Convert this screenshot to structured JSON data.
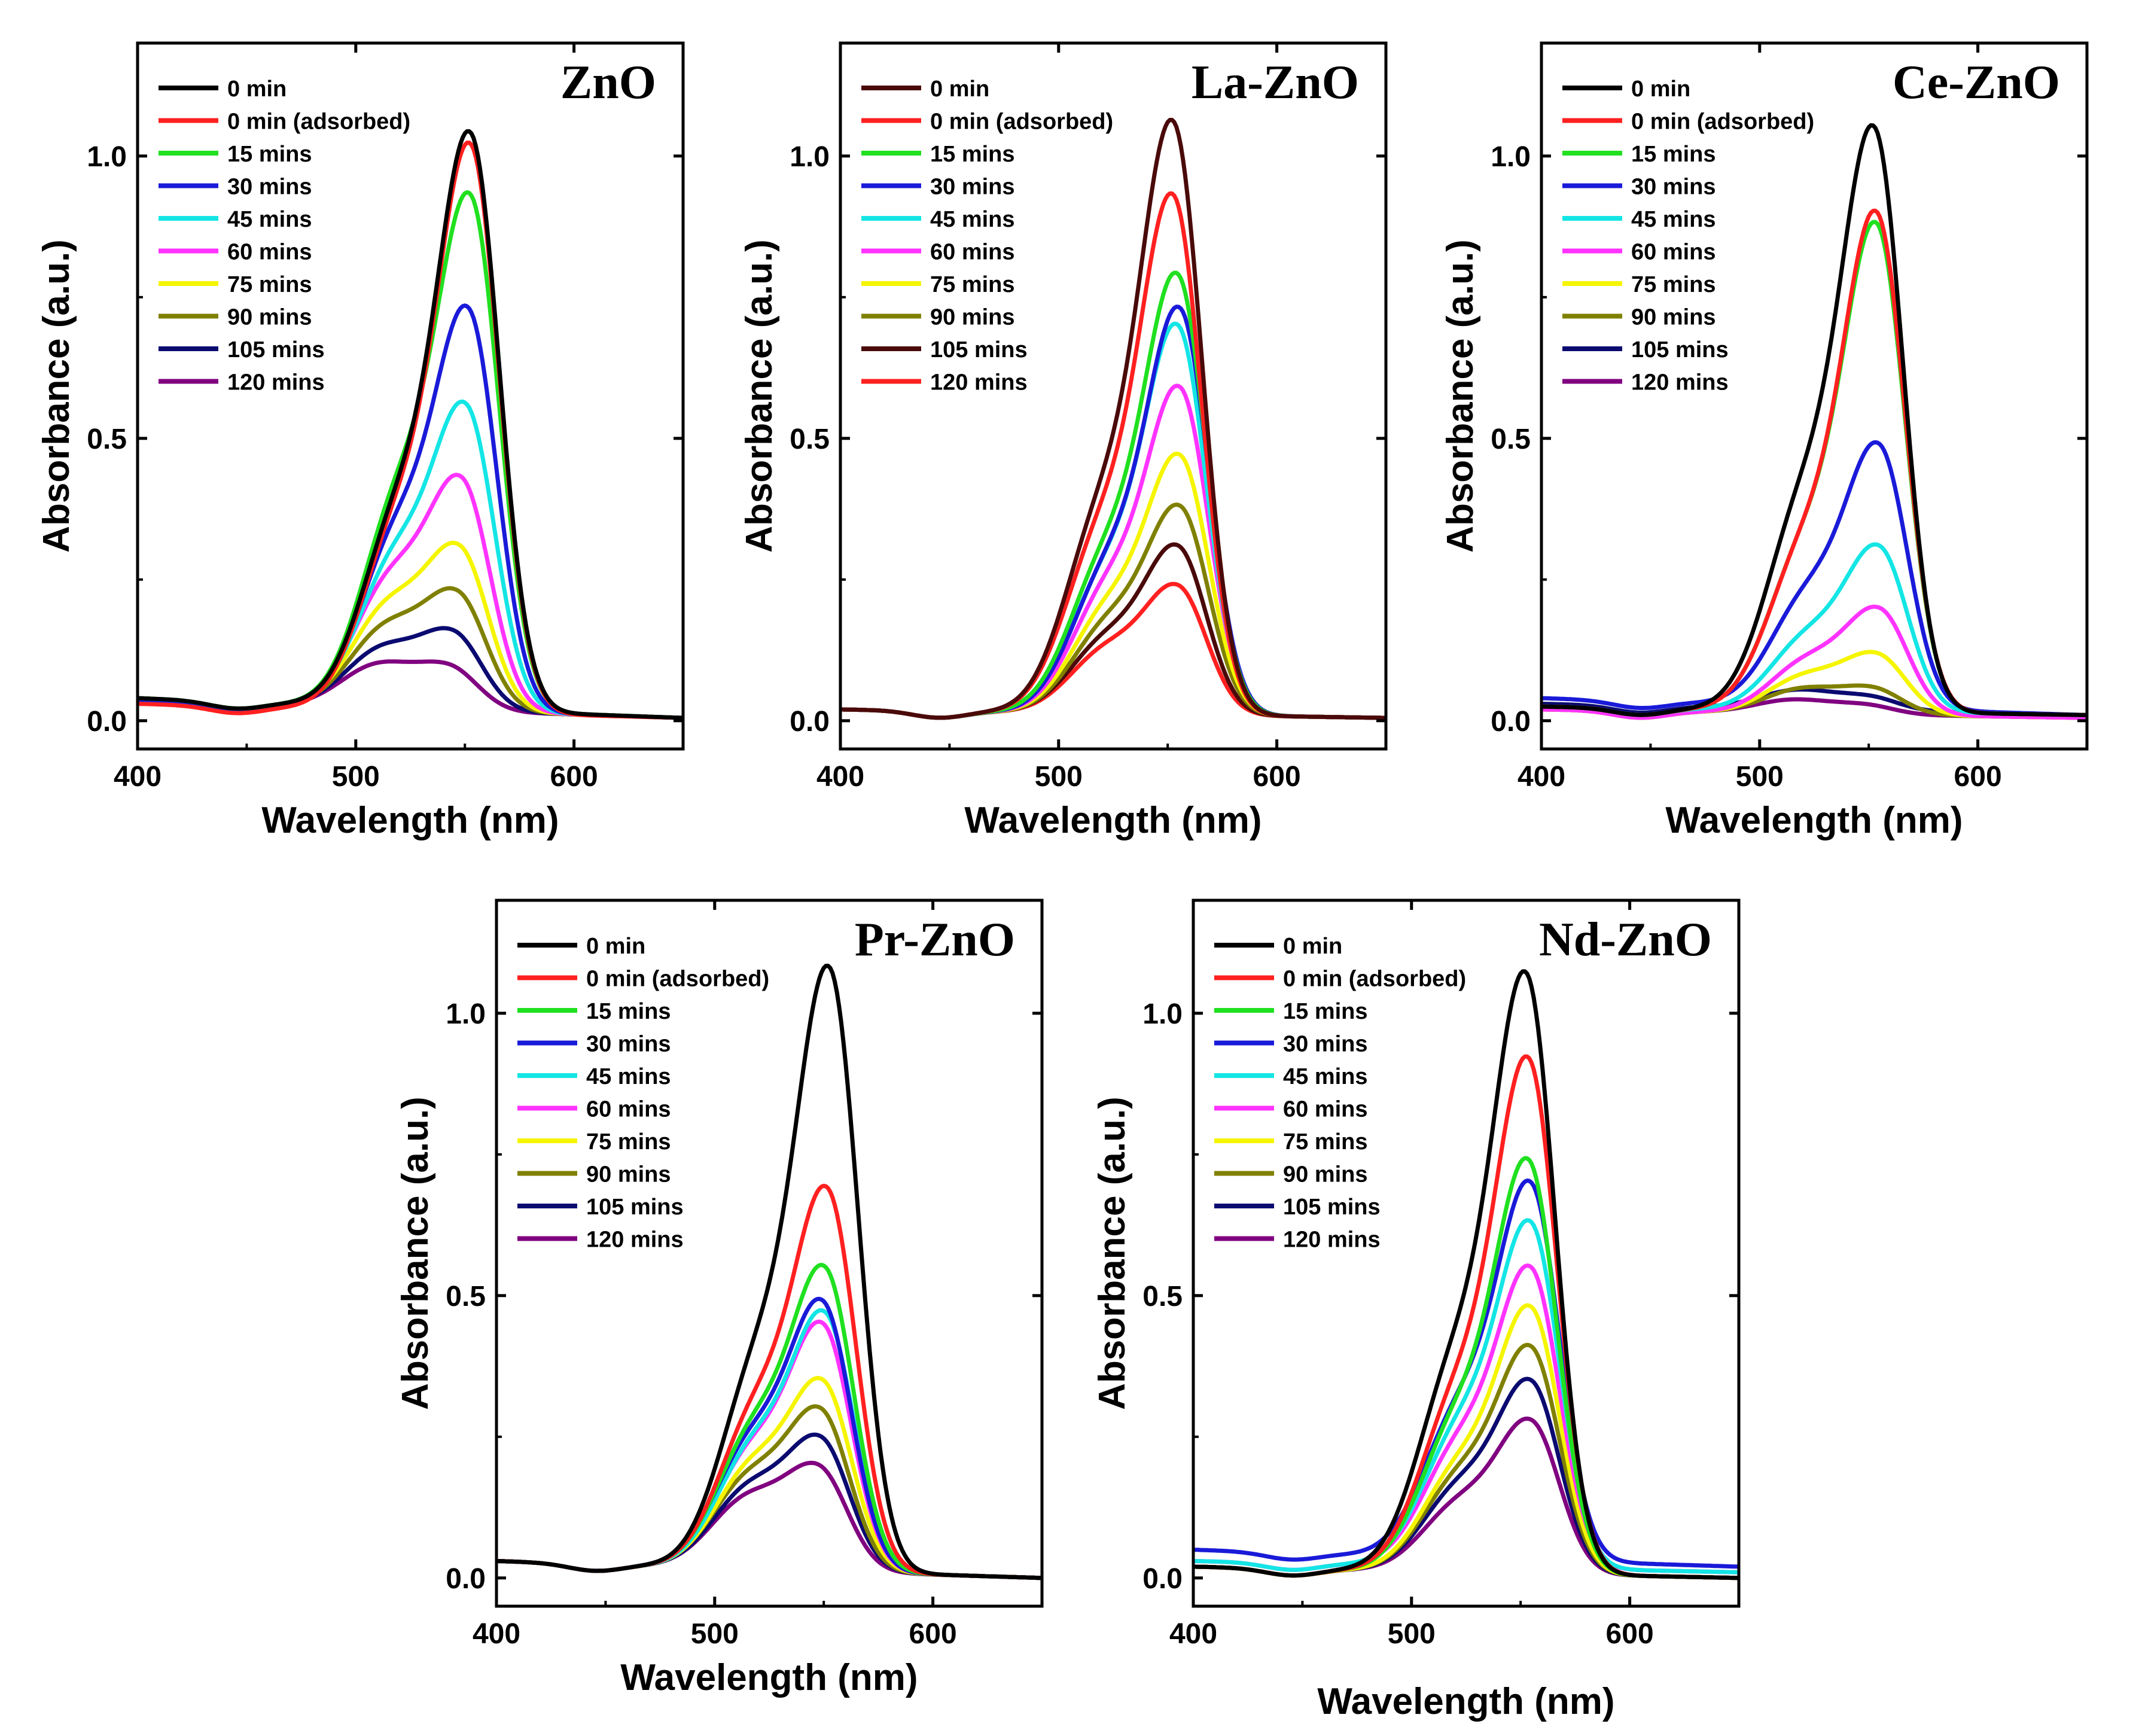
{
  "figure": {
    "ylabel": "Absorbance (a.u.)",
    "xlabel": "Wavelength (nm)"
  },
  "chart_data": [
    {
      "type": "line",
      "title": "ZnO",
      "xlabel": "Wavelength (nm)",
      "ylabel": "Absorbance (a.u.)",
      "xlim": [
        400,
        650
      ],
      "ylim": [
        -0.05,
        1.2
      ],
      "xticks": [
        400,
        500,
        600
      ],
      "yticks": [
        0.0,
        0.5,
        1.0
      ],
      "xtick_labels": [
        "400",
        "500",
        "600"
      ],
      "ytick_labels": [
        "0.0",
        "0.5",
        "1.0"
      ],
      "legend_position": "top-left",
      "series": [
        {
          "name": "0 min",
          "color": "#000000",
          "peak_x": 553,
          "peak_y": 1.04,
          "shoulder_y": 0.38,
          "base_left": 0.04,
          "base_right": 0.005
        },
        {
          "name": "0 min (adsorbed)",
          "color": "#ff2020",
          "peak_x": 553,
          "peak_y": 1.02,
          "shoulder_y": 0.37,
          "base_left": 0.03,
          "base_right": 0.005
        },
        {
          "name": "15 mins",
          "color": "#20e020",
          "peak_x": 553,
          "peak_y": 0.93,
          "shoulder_y": 0.4,
          "base_left": 0.04,
          "base_right": 0.005
        },
        {
          "name": "30 mins",
          "color": "#1a1ad9",
          "peak_x": 552,
          "peak_y": 0.73,
          "shoulder_y": 0.33,
          "base_left": 0.035,
          "base_right": 0.005
        },
        {
          "name": "45 mins",
          "color": "#14e5e5",
          "peak_x": 551,
          "peak_y": 0.56,
          "shoulder_y": 0.28,
          "base_left": 0.035,
          "base_right": 0.005
        },
        {
          "name": "60 mins",
          "color": "#ff33ff",
          "peak_x": 549,
          "peak_y": 0.43,
          "shoulder_y": 0.24,
          "base_left": 0.035,
          "base_right": 0.005
        },
        {
          "name": "75 mins",
          "color": "#f5f500",
          "peak_x": 548,
          "peak_y": 0.31,
          "shoulder_y": 0.19,
          "base_left": 0.035,
          "base_right": 0.005
        },
        {
          "name": "90 mins",
          "color": "#808000",
          "peak_x": 547,
          "peak_y": 0.23,
          "shoulder_y": 0.15,
          "base_left": 0.035,
          "base_right": 0.005
        },
        {
          "name": "105 mins",
          "color": "#0a0a70",
          "peak_x": 545,
          "peak_y": 0.16,
          "shoulder_y": 0.11,
          "base_left": 0.035,
          "base_right": 0.005
        },
        {
          "name": "120 mins",
          "color": "#800080",
          "peak_x": 543,
          "peak_y": 0.1,
          "shoulder_y": 0.08,
          "base_left": 0.035,
          "base_right": 0.005
        }
      ]
    },
    {
      "type": "line",
      "title": "La-ZnO",
      "xlabel": "Wavelength (nm)",
      "ylabel": "Absorbance (a.u.)",
      "xlim": [
        400,
        650
      ],
      "ylim": [
        -0.05,
        1.2
      ],
      "xticks": [
        400,
        500,
        600
      ],
      "yticks": [
        0.0,
        0.5,
        1.0
      ],
      "xtick_labels": [
        "400",
        "500",
        "600"
      ],
      "ytick_labels": [
        "0.0",
        "0.5",
        "1.0"
      ],
      "legend_position": "top-left",
      "series": [
        {
          "name": "0 min",
          "color": "#4a0a0a",
          "peak_x": 553,
          "peak_y": 1.06,
          "shoulder_y": 0.39,
          "base_left": 0.02,
          "base_right": 0.005
        },
        {
          "name": "0 min (adsorbed)",
          "color": "#ff2020",
          "peak_x": 553,
          "peak_y": 0.93,
          "shoulder_y": 0.35,
          "base_left": 0.02,
          "base_right": 0.005
        },
        {
          "name": "15 mins",
          "color": "#20e020",
          "peak_x": 555,
          "peak_y": 0.79,
          "shoulder_y": 0.3,
          "base_left": 0.02,
          "base_right": 0.005
        },
        {
          "name": "30 mins",
          "color": "#1a1ad9",
          "peak_x": 556,
          "peak_y": 0.73,
          "shoulder_y": 0.28,
          "base_left": 0.02,
          "base_right": 0.005
        },
        {
          "name": "45 mins",
          "color": "#14e5e5",
          "peak_x": 555,
          "peak_y": 0.7,
          "shoulder_y": 0.27,
          "base_left": 0.02,
          "base_right": 0.005
        },
        {
          "name": "60 mins",
          "color": "#ff33ff",
          "peak_x": 556,
          "peak_y": 0.59,
          "shoulder_y": 0.24,
          "base_left": 0.02,
          "base_right": 0.005
        },
        {
          "name": "75 mins",
          "color": "#f5f500",
          "peak_x": 556,
          "peak_y": 0.47,
          "shoulder_y": 0.2,
          "base_left": 0.02,
          "base_right": 0.005
        },
        {
          "name": "90 mins",
          "color": "#808000",
          "peak_x": 556,
          "peak_y": 0.38,
          "shoulder_y": 0.17,
          "base_left": 0.02,
          "base_right": 0.005
        },
        {
          "name": "105 mins",
          "color": "#4a0a0a",
          "peak_x": 555,
          "peak_y": 0.31,
          "shoulder_y": 0.14,
          "base_left": 0.02,
          "base_right": 0.005
        },
        {
          "name": "120 mins",
          "color": "#ff2020",
          "peak_x": 555,
          "peak_y": 0.24,
          "shoulder_y": 0.12,
          "base_left": 0.02,
          "base_right": 0.005
        }
      ]
    },
    {
      "type": "line",
      "title": "Ce-ZnO",
      "xlabel": "Wavelength (nm)",
      "ylabel": "Absorbance (a.u.)",
      "xlim": [
        400,
        650
      ],
      "ylim": [
        -0.05,
        1.2
      ],
      "xticks": [
        400,
        500,
        600
      ],
      "yticks": [
        0.0,
        0.5,
        1.0
      ],
      "xtick_labels": [
        "400",
        "500",
        "600"
      ],
      "ytick_labels": [
        "0.0",
        "0.5",
        "1.0"
      ],
      "legend_position": "top-left",
      "series": [
        {
          "name": "0 min",
          "color": "#000000",
          "peak_x": 553,
          "peak_y": 1.05,
          "shoulder_y": 0.4,
          "base_left": 0.025,
          "base_right": 0.01
        },
        {
          "name": "0 min (adsorbed)",
          "color": "#ff2020",
          "peak_x": 554,
          "peak_y": 0.9,
          "shoulder_y": 0.32,
          "base_left": 0.025,
          "base_right": 0.01
        },
        {
          "name": "15 mins",
          "color": "#20e020",
          "peak_x": 554,
          "peak_y": 0.88,
          "shoulder_y": 0.32,
          "base_left": 0.025,
          "base_right": 0.01
        },
        {
          "name": "30 mins",
          "color": "#1a1ad9",
          "peak_x": 555,
          "peak_y": 0.49,
          "shoulder_y": 0.21,
          "base_left": 0.04,
          "base_right": 0.01
        },
        {
          "name": "45 mins",
          "color": "#14e5e5",
          "peak_x": 555,
          "peak_y": 0.31,
          "shoulder_y": 0.14,
          "base_left": 0.025,
          "base_right": 0.01
        },
        {
          "name": "60 mins",
          "color": "#ff33ff",
          "peak_x": 555,
          "peak_y": 0.2,
          "shoulder_y": 0.1,
          "base_left": 0.02,
          "base_right": 0.005
        },
        {
          "name": "75 mins",
          "color": "#f5f500",
          "peak_x": 554,
          "peak_y": 0.12,
          "shoulder_y": 0.07,
          "base_left": 0.02,
          "base_right": 0.005
        },
        {
          "name": "90 mins",
          "color": "#808000",
          "peak_x": 552,
          "peak_y": 0.06,
          "shoulder_y": 0.045,
          "base_left": 0.02,
          "base_right": 0.005
        },
        {
          "name": "105 mins",
          "color": "#0a0a70",
          "peak_x": 550,
          "peak_y": 0.045,
          "shoulder_y": 0.035,
          "base_left": 0.03,
          "base_right": 0.01
        },
        {
          "name": "120 mins",
          "color": "#800080",
          "peak_x": 548,
          "peak_y": 0.03,
          "shoulder_y": 0.025,
          "base_left": 0.02,
          "base_right": 0.005
        }
      ]
    },
    {
      "type": "line",
      "title": "Pr-ZnO",
      "xlabel": "Wavelength (nm)",
      "ylabel": "Absorbance (a.u.)",
      "xlim": [
        400,
        650
      ],
      "ylim": [
        -0.05,
        1.2
      ],
      "xticks": [
        400,
        500,
        600
      ],
      "yticks": [
        0.0,
        0.5,
        1.0
      ],
      "xtick_labels": [
        "400",
        "500",
        "600"
      ],
      "ytick_labels": [
        "0.0",
        "0.5",
        "1.0"
      ],
      "legend_position": "top-left",
      "series": [
        {
          "name": "0 min",
          "color": "#000000",
          "peak_x": 553,
          "peak_y": 1.08,
          "shoulder_y": 0.4,
          "base_left": 0.03,
          "base_right": 0.0
        },
        {
          "name": "0 min (adsorbed)",
          "color": "#ff2020",
          "peak_x": 552,
          "peak_y": 0.69,
          "shoulder_y": 0.3,
          "base_left": 0.03,
          "base_right": 0.0
        },
        {
          "name": "15 mins",
          "color": "#20e020",
          "peak_x": 551,
          "peak_y": 0.55,
          "shoulder_y": 0.26,
          "base_left": 0.03,
          "base_right": 0.0
        },
        {
          "name": "30 mins",
          "color": "#1a1ad9",
          "peak_x": 550,
          "peak_y": 0.49,
          "shoulder_y": 0.24,
          "base_left": 0.03,
          "base_right": 0.0
        },
        {
          "name": "45 mins",
          "color": "#14e5e5",
          "peak_x": 551,
          "peak_y": 0.47,
          "shoulder_y": 0.23,
          "base_left": 0.03,
          "base_right": 0.0
        },
        {
          "name": "60 mins",
          "color": "#ff33ff",
          "peak_x": 550,
          "peak_y": 0.45,
          "shoulder_y": 0.22,
          "base_left": 0.03,
          "base_right": 0.0
        },
        {
          "name": "75 mins",
          "color": "#f5f500",
          "peak_x": 550,
          "peak_y": 0.35,
          "shoulder_y": 0.19,
          "base_left": 0.03,
          "base_right": 0.0
        },
        {
          "name": "90 mins",
          "color": "#808000",
          "peak_x": 549,
          "peak_y": 0.3,
          "shoulder_y": 0.17,
          "base_left": 0.03,
          "base_right": 0.0
        },
        {
          "name": "105 mins",
          "color": "#0a0a70",
          "peak_x": 549,
          "peak_y": 0.25,
          "shoulder_y": 0.15,
          "base_left": 0.03,
          "base_right": 0.0
        },
        {
          "name": "120 mins",
          "color": "#800080",
          "peak_x": 548,
          "peak_y": 0.2,
          "shoulder_y": 0.13,
          "base_left": 0.03,
          "base_right": 0.0
        }
      ]
    },
    {
      "type": "line",
      "title": "Nd-ZnO",
      "xlabel": "Wavelength (nm)",
      "ylabel": "Absorbance (a.u.)",
      "xlim": [
        400,
        650
      ],
      "ylim": [
        -0.05,
        1.2
      ],
      "xticks": [
        400,
        500,
        600
      ],
      "yticks": [
        0.0,
        0.5,
        1.0
      ],
      "xtick_labels": [
        "400",
        "500",
        "600"
      ],
      "ytick_labels": [
        "0.0",
        "0.5",
        "1.0"
      ],
      "legend_position": "top-left",
      "series": [
        {
          "name": "0 min",
          "color": "#000000",
          "peak_x": 553,
          "peak_y": 1.07,
          "shoulder_y": 0.4,
          "base_left": 0.02,
          "base_right": 0.0
        },
        {
          "name": "0 min (adsorbed)",
          "color": "#ff2020",
          "peak_x": 554,
          "peak_y": 0.92,
          "shoulder_y": 0.34,
          "base_left": 0.02,
          "base_right": 0.0
        },
        {
          "name": "15 mins",
          "color": "#20e020",
          "peak_x": 554,
          "peak_y": 0.74,
          "shoulder_y": 0.29,
          "base_left": 0.02,
          "base_right": 0.0
        },
        {
          "name": "30 mins",
          "color": "#1a1ad9",
          "peak_x": 555,
          "peak_y": 0.7,
          "shoulder_y": 0.28,
          "base_left": 0.05,
          "base_right": 0.02
        },
        {
          "name": "45 mins",
          "color": "#14e5e5",
          "peak_x": 555,
          "peak_y": 0.63,
          "shoulder_y": 0.26,
          "base_left": 0.03,
          "base_right": 0.01
        },
        {
          "name": "60 mins",
          "color": "#ff33ff",
          "peak_x": 555,
          "peak_y": 0.55,
          "shoulder_y": 0.23,
          "base_left": 0.03,
          "base_right": 0.01
        },
        {
          "name": "75 mins",
          "color": "#f5f500",
          "peak_x": 555,
          "peak_y": 0.48,
          "shoulder_y": 0.2,
          "base_left": 0.02,
          "base_right": 0.0
        },
        {
          "name": "90 mins",
          "color": "#808000",
          "peak_x": 555,
          "peak_y": 0.41,
          "shoulder_y": 0.18,
          "base_left": 0.02,
          "base_right": 0.0
        },
        {
          "name": "105 mins",
          "color": "#0a0a70",
          "peak_x": 555,
          "peak_y": 0.35,
          "shoulder_y": 0.16,
          "base_left": 0.02,
          "base_right": 0.0
        },
        {
          "name": "120 mins",
          "color": "#800080",
          "peak_x": 555,
          "peak_y": 0.28,
          "shoulder_y": 0.13,
          "base_left": 0.02,
          "base_right": 0.0
        }
      ]
    }
  ]
}
